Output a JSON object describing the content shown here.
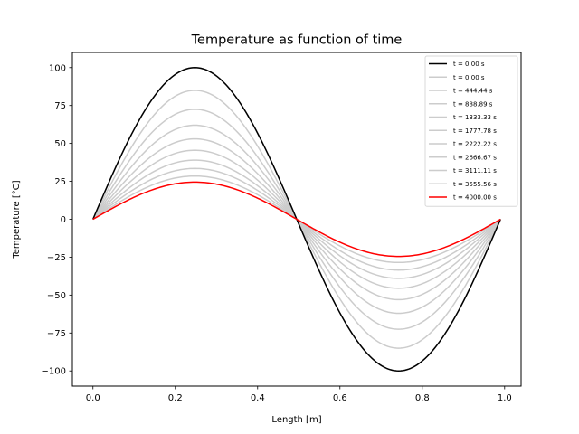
{
  "chart_data": {
    "type": "line",
    "title": "Temperature as function of time",
    "xlabel": "Length [m]",
    "ylabel": "Temperature [°C]",
    "xlim": [
      -0.05,
      1.04
    ],
    "ylim": [
      -110,
      110
    ],
    "xticks": [
      0.0,
      0.2,
      0.4,
      0.6,
      0.8,
      1.0
    ],
    "xtick_labels": [
      "0.0",
      "0.2",
      "0.4",
      "0.6",
      "0.8",
      "1.0"
    ],
    "yticks": [
      -100,
      -75,
      -50,
      -25,
      0,
      25,
      50,
      75,
      100
    ],
    "ytick_labels": [
      "−100",
      "−75",
      "−50",
      "−25",
      "0",
      "25",
      "50",
      "75",
      "100"
    ],
    "grid": false,
    "legend_position": "top-right",
    "x_range": [
      0.0,
      0.99
    ],
    "period": 0.99,
    "series": [
      {
        "name": "t = 0.00 s",
        "amplitude": 100,
        "color": "#000000"
      },
      {
        "name": "t = 0.00 s",
        "amplitude": 100,
        "color": "#cccccc"
      },
      {
        "name": "t = 444.44 s",
        "amplitude": 85,
        "color": "#cccccc"
      },
      {
        "name": "t = 888.89 s",
        "amplitude": 72.5,
        "color": "#cccccc"
      },
      {
        "name": "t = 1333.33 s",
        "amplitude": 62,
        "color": "#cccccc"
      },
      {
        "name": "t = 1777.78 s",
        "amplitude": 53,
        "color": "#cccccc"
      },
      {
        "name": "t = 2222.22 s",
        "amplitude": 45.5,
        "color": "#cccccc"
      },
      {
        "name": "t = 2666.67 s",
        "amplitude": 39,
        "color": "#cccccc"
      },
      {
        "name": "t = 3111.11 s",
        "amplitude": 33.5,
        "color": "#cccccc"
      },
      {
        "name": "t = 3555.56 s",
        "amplitude": 28.5,
        "color": "#cccccc"
      },
      {
        "name": "t = 4000.00 s",
        "amplitude": 24.5,
        "color": "#ff0000"
      }
    ]
  }
}
